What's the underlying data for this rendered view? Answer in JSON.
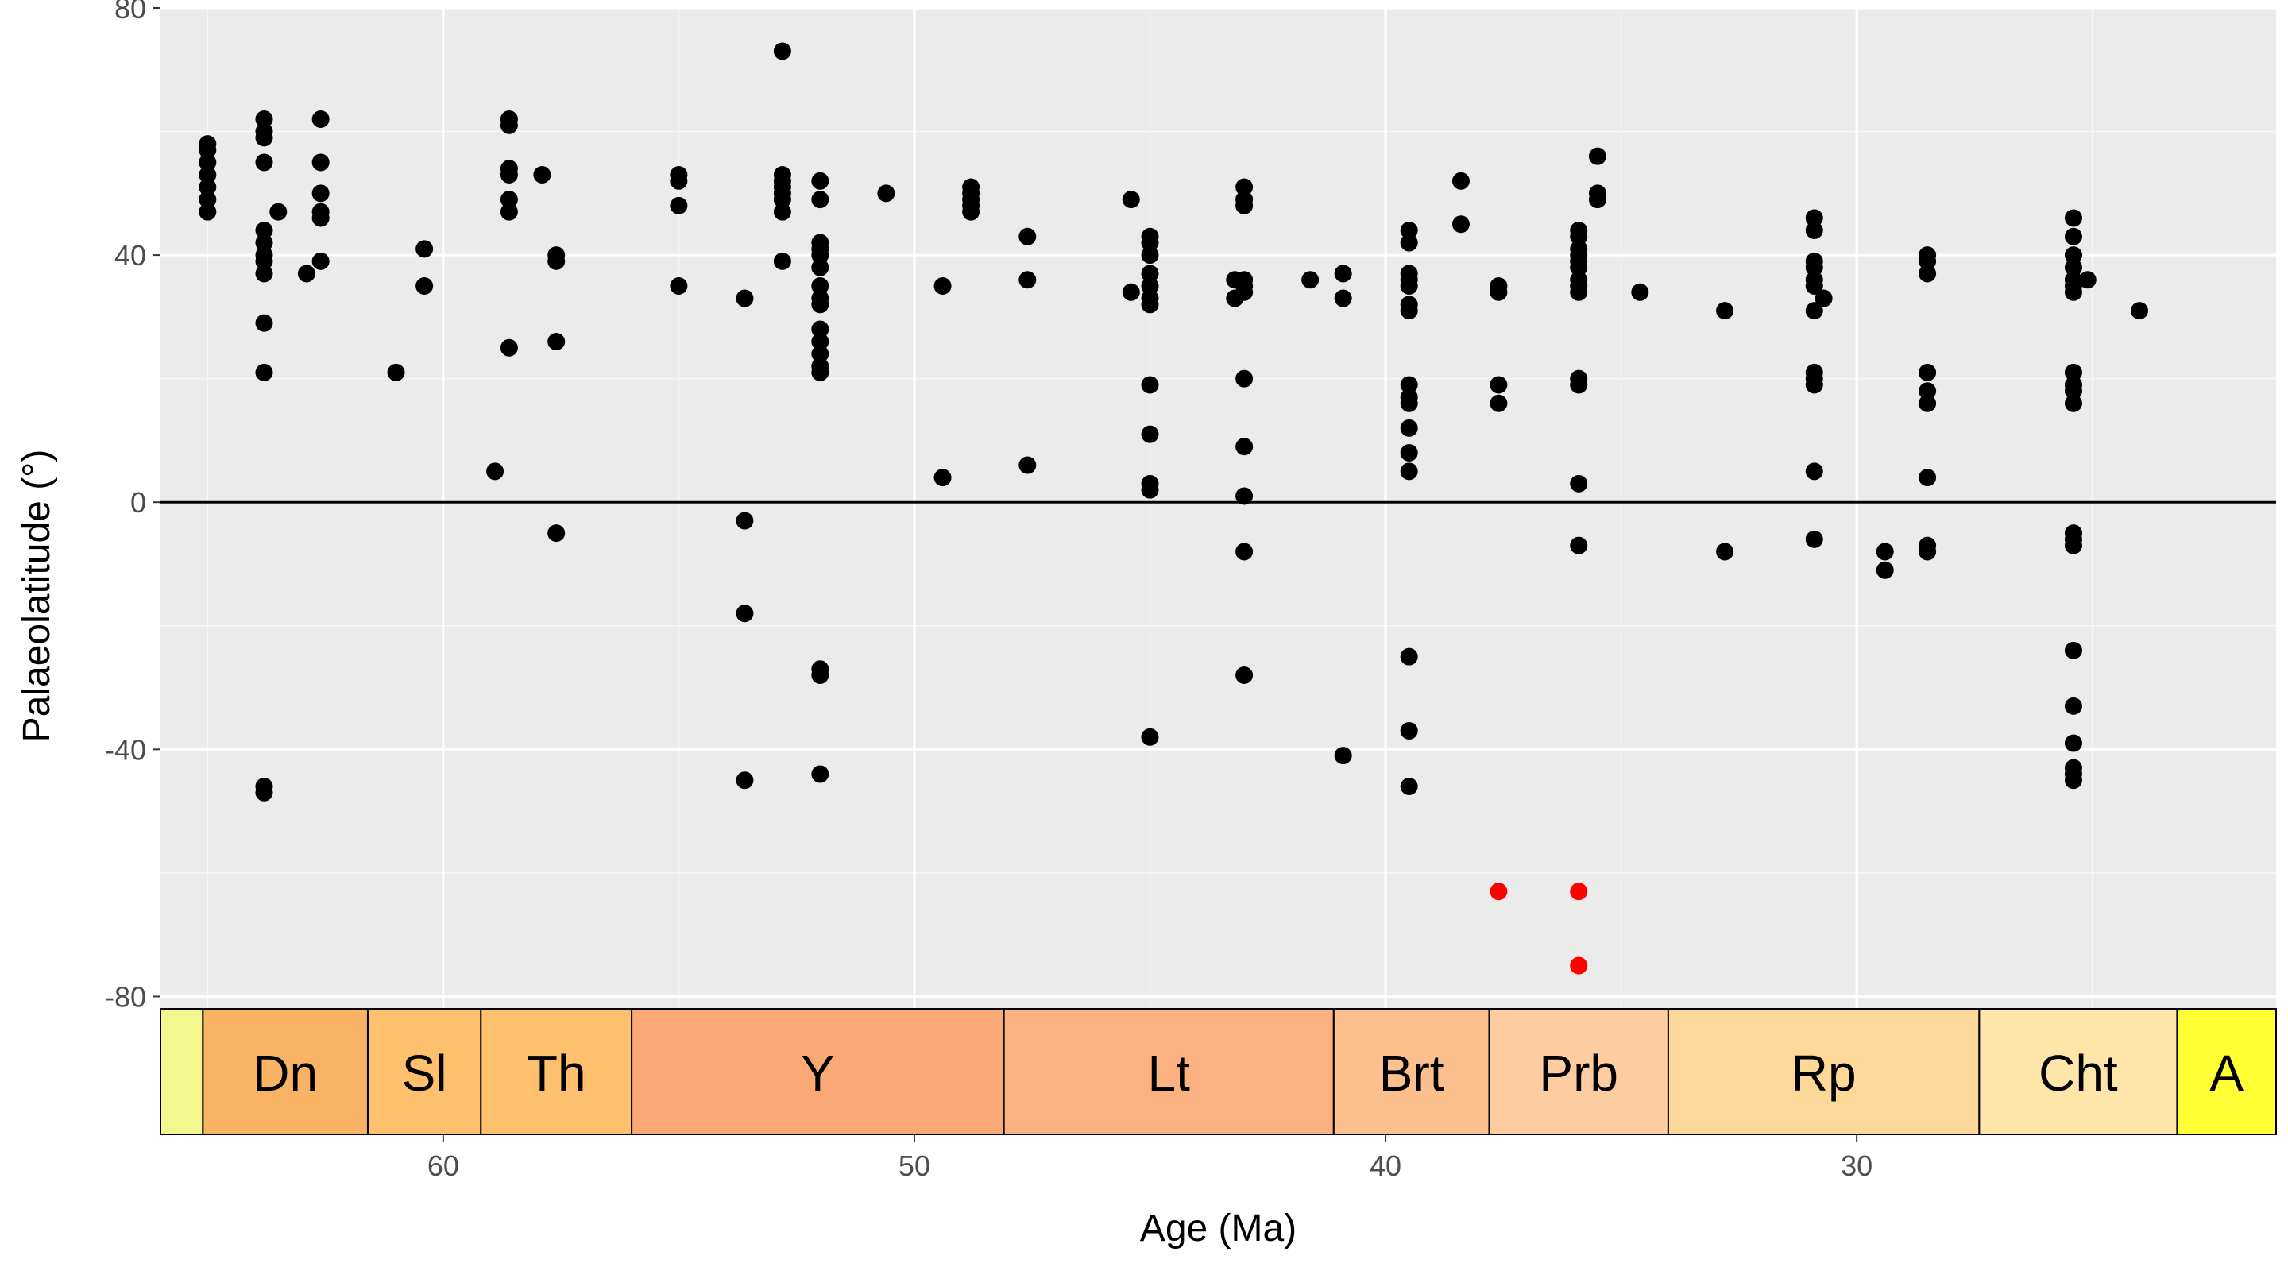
{
  "chart_data": {
    "type": "scatter",
    "title": "",
    "xlabel": "Age (Ma)",
    "ylabel": "Palaeolatitude (°)",
    "xlim": [
      66.0,
      21.1
    ],
    "ylim": [
      -82,
      80
    ],
    "x_reversed": true,
    "xticks": [
      60,
      50,
      40,
      30
    ],
    "yticks": [
      80,
      40,
      0,
      -40,
      -80
    ],
    "grid": true,
    "panel_background": "#ebebeb",
    "hline": 0,
    "legend": "none",
    "point_color": "#000000",
    "highlight_color": "#ff0000",
    "points": [
      [
        65.0,
        58
      ],
      [
        65.0,
        57
      ],
      [
        65.0,
        55
      ],
      [
        65.0,
        53
      ],
      [
        65.0,
        51
      ],
      [
        65.0,
        49
      ],
      [
        65.0,
        47
      ],
      [
        63.8,
        62
      ],
      [
        63.8,
        60
      ],
      [
        63.8,
        59
      ],
      [
        63.8,
        55
      ],
      [
        63.8,
        44
      ],
      [
        63.8,
        42
      ],
      [
        63.8,
        40
      ],
      [
        63.8,
        39
      ],
      [
        63.8,
        37
      ],
      [
        63.8,
        29
      ],
      [
        63.8,
        21
      ],
      [
        63.8,
        -46
      ],
      [
        63.8,
        -47
      ],
      [
        63.5,
        47
      ],
      [
        62.6,
        62
      ],
      [
        62.6,
        55
      ],
      [
        62.6,
        50
      ],
      [
        62.6,
        47
      ],
      [
        62.6,
        46
      ],
      [
        62.6,
        39
      ],
      [
        62.9,
        37
      ],
      [
        61.0,
        21
      ],
      [
        60.4,
        41
      ],
      [
        60.4,
        35
      ],
      [
        58.6,
        62
      ],
      [
        58.6,
        61
      ],
      [
        58.6,
        54
      ],
      [
        58.6,
        53
      ],
      [
        58.6,
        49
      ],
      [
        58.6,
        47
      ],
      [
        58.6,
        25
      ],
      [
        58.9,
        5
      ],
      [
        57.9,
        53
      ],
      [
        57.6,
        40
      ],
      [
        57.6,
        39
      ],
      [
        57.6,
        26
      ],
      [
        57.6,
        -5
      ],
      [
        55.0,
        53
      ],
      [
        55.0,
        52
      ],
      [
        55.0,
        48
      ],
      [
        55.0,
        35
      ],
      [
        53.6,
        33
      ],
      [
        53.6,
        -3
      ],
      [
        53.6,
        -18
      ],
      [
        53.6,
        -45
      ],
      [
        52.8,
        73
      ],
      [
        52.8,
        53
      ],
      [
        52.8,
        52
      ],
      [
        52.8,
        51
      ],
      [
        52.8,
        50
      ],
      [
        52.8,
        49
      ],
      [
        52.8,
        47
      ],
      [
        52.8,
        39
      ],
      [
        52.0,
        52
      ],
      [
        52.0,
        49
      ],
      [
        52.0,
        42
      ],
      [
        52.0,
        41
      ],
      [
        52.0,
        40
      ],
      [
        52.0,
        38
      ],
      [
        52.0,
        35
      ],
      [
        52.0,
        33
      ],
      [
        52.0,
        32
      ],
      [
        52.0,
        28
      ],
      [
        52.0,
        26
      ],
      [
        52.0,
        24
      ],
      [
        52.0,
        22
      ],
      [
        52.0,
        21
      ],
      [
        52.0,
        -27
      ],
      [
        52.0,
        -28
      ],
      [
        52.0,
        -44
      ],
      [
        50.6,
        50
      ],
      [
        48.8,
        51
      ],
      [
        48.8,
        50
      ],
      [
        48.8,
        49
      ],
      [
        48.8,
        48
      ],
      [
        48.8,
        47
      ],
      [
        49.4,
        35
      ],
      [
        49.4,
        4
      ],
      [
        47.6,
        43
      ],
      [
        47.6,
        36
      ],
      [
        47.6,
        6
      ],
      [
        45.4,
        49
      ],
      [
        45.4,
        34
      ],
      [
        45.0,
        43
      ],
      [
        45.0,
        42
      ],
      [
        45.0,
        40
      ],
      [
        45.0,
        37
      ],
      [
        45.0,
        35
      ],
      [
        45.0,
        33
      ],
      [
        45.0,
        32
      ],
      [
        45.0,
        19
      ],
      [
        45.0,
        11
      ],
      [
        45.0,
        3
      ],
      [
        45.0,
        2
      ],
      [
        45.0,
        -38
      ],
      [
        43.0,
        51
      ],
      [
        43.0,
        49
      ],
      [
        43.0,
        48
      ],
      [
        43.0,
        36
      ],
      [
        43.0,
        35
      ],
      [
        43.0,
        34
      ],
      [
        43.0,
        20
      ],
      [
        43.0,
        9
      ],
      [
        43.0,
        1
      ],
      [
        43.0,
        -8
      ],
      [
        43.0,
        -28
      ],
      [
        43.2,
        36
      ],
      [
        43.2,
        33
      ],
      [
        41.6,
        36
      ],
      [
        40.9,
        37
      ],
      [
        40.9,
        33
      ],
      [
        40.9,
        -41
      ],
      [
        39.5,
        44
      ],
      [
        39.5,
        42
      ],
      [
        39.5,
        37
      ],
      [
        39.5,
        36
      ],
      [
        39.5,
        35
      ],
      [
        39.5,
        32
      ],
      [
        39.5,
        31
      ],
      [
        39.5,
        19
      ],
      [
        39.5,
        17
      ],
      [
        39.5,
        16
      ],
      [
        39.5,
        12
      ],
      [
        39.5,
        8
      ],
      [
        39.5,
        5
      ],
      [
        39.5,
        -25
      ],
      [
        39.5,
        -37
      ],
      [
        39.5,
        -46
      ],
      [
        38.4,
        52
      ],
      [
        38.4,
        45
      ],
      [
        37.6,
        35
      ],
      [
        37.6,
        34
      ],
      [
        37.6,
        19
      ],
      [
        37.6,
        16
      ],
      [
        35.9,
        44
      ],
      [
        35.9,
        43
      ],
      [
        35.9,
        41
      ],
      [
        35.9,
        40
      ],
      [
        35.9,
        39
      ],
      [
        35.9,
        38
      ],
      [
        35.9,
        36
      ],
      [
        35.9,
        35
      ],
      [
        35.9,
        34
      ],
      [
        35.9,
        20
      ],
      [
        35.9,
        19
      ],
      [
        35.9,
        3
      ],
      [
        35.9,
        -7
      ],
      [
        35.5,
        56
      ],
      [
        35.5,
        50
      ],
      [
        35.5,
        49
      ],
      [
        34.6,
        34
      ],
      [
        32.8,
        31
      ],
      [
        32.8,
        -8
      ],
      [
        30.9,
        46
      ],
      [
        30.9,
        44
      ],
      [
        30.9,
        39
      ],
      [
        30.9,
        38
      ],
      [
        30.9,
        36
      ],
      [
        30.9,
        35
      ],
      [
        30.9,
        31
      ],
      [
        30.9,
        21
      ],
      [
        30.9,
        20
      ],
      [
        30.9,
        19
      ],
      [
        30.9,
        5
      ],
      [
        30.9,
        -6
      ],
      [
        30.7,
        33
      ],
      [
        29.4,
        -8
      ],
      [
        29.4,
        -11
      ],
      [
        28.5,
        40
      ],
      [
        28.5,
        39
      ],
      [
        28.5,
        37
      ],
      [
        28.5,
        21
      ],
      [
        28.5,
        18
      ],
      [
        28.5,
        16
      ],
      [
        28.5,
        4
      ],
      [
        28.5,
        -7
      ],
      [
        28.5,
        -8
      ],
      [
        25.4,
        46
      ],
      [
        25.4,
        43
      ],
      [
        25.4,
        40
      ],
      [
        25.4,
        38
      ],
      [
        25.4,
        36
      ],
      [
        25.4,
        35
      ],
      [
        25.4,
        34
      ],
      [
        25.4,
        21
      ],
      [
        25.4,
        19
      ],
      [
        25.4,
        18
      ],
      [
        25.4,
        16
      ],
      [
        25.4,
        -5
      ],
      [
        25.4,
        -6
      ],
      [
        25.4,
        -7
      ],
      [
        25.4,
        -24
      ],
      [
        25.4,
        -33
      ],
      [
        25.4,
        -39
      ],
      [
        25.4,
        -43
      ],
      [
        25.4,
        -44
      ],
      [
        25.4,
        -45
      ],
      [
        25.1,
        36
      ],
      [
        24.0,
        31
      ]
    ],
    "highlight_points": [
      [
        37.6,
        -63
      ],
      [
        35.9,
        -63
      ],
      [
        35.9,
        -75
      ]
    ],
    "stages": [
      {
        "label": "",
        "from": 66.0,
        "to": 65.1,
        "color": "#f2f88d"
      },
      {
        "label": "Dn",
        "from": 65.1,
        "to": 61.6,
        "color": "#fab364"
      },
      {
        "label": "Sl",
        "from": 61.6,
        "to": 59.2,
        "color": "#fec06c"
      },
      {
        "label": "Th",
        "from": 59.2,
        "to": 56.0,
        "color": "#fec06c"
      },
      {
        "label": "Y",
        "from": 56.0,
        "to": 48.1,
        "color": "#faa874"
      },
      {
        "label": "Lt",
        "from": 48.1,
        "to": 41.1,
        "color": "#fbb280"
      },
      {
        "label": "Brt",
        "from": 41.1,
        "to": 37.8,
        "color": "#fbc08e"
      },
      {
        "label": "Prb",
        "from": 37.8,
        "to": 34.0,
        "color": "#fdcda1"
      },
      {
        "label": "Rp",
        "from": 34.0,
        "to": 27.4,
        "color": "#fed898"
      },
      {
        "label": "Cht",
        "from": 27.4,
        "to": 23.2,
        "color": "#fee6aa"
      },
      {
        "label": "A",
        "from": 23.2,
        "to": 21.1,
        "color": "#ffff33"
      }
    ]
  }
}
